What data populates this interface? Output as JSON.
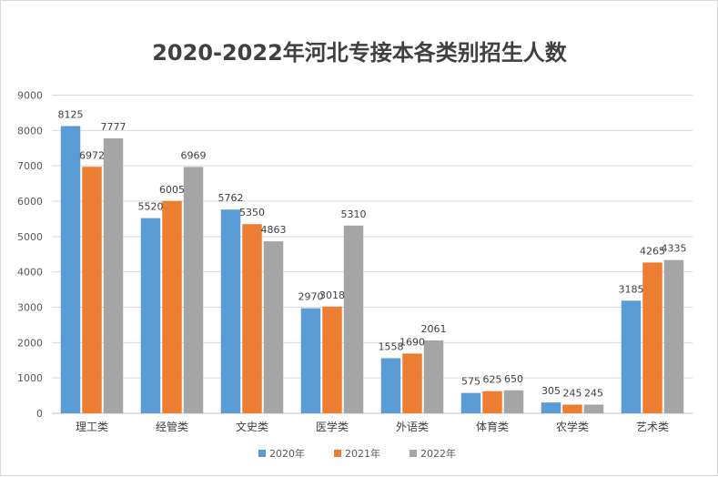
{
  "chart_data": {
    "type": "bar",
    "title": "2020-2022年河北专接本各类别招生人数",
    "xlabel": "",
    "ylabel": "",
    "ylim": [
      0,
      9000
    ],
    "yticks": [
      0,
      1000,
      2000,
      3000,
      4000,
      5000,
      6000,
      7000,
      8000,
      9000
    ],
    "grid": true,
    "legend_position": "bottom",
    "categories": [
      "理工类",
      "经管类",
      "文史类",
      "医学类",
      "外语类",
      "体育类",
      "农学类",
      "艺术类"
    ],
    "series": [
      {
        "name": "2020年",
        "color": "#5b9bd5",
        "values": [
          8125,
          5520,
          5762,
          2970,
          1558,
          575,
          305,
          3185
        ]
      },
      {
        "name": "2021年",
        "color": "#ed7d31",
        "values": [
          6972,
          6005,
          5350,
          3018,
          1690,
          625,
          245,
          4265
        ]
      },
      {
        "name": "2022年",
        "color": "#a5a5a5",
        "values": [
          7777,
          6969,
          4863,
          5310,
          2061,
          650,
          245,
          4335
        ]
      }
    ]
  }
}
